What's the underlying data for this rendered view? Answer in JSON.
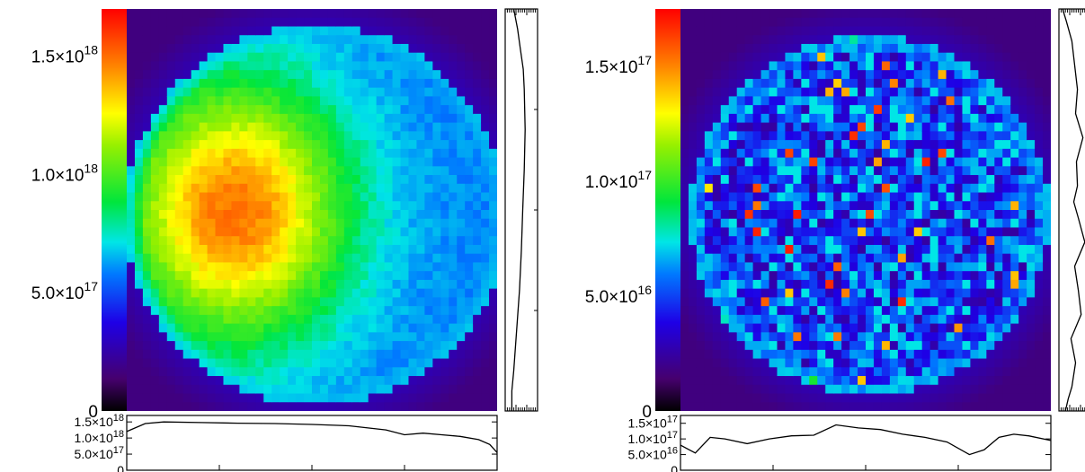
{
  "chart_data": [
    {
      "type": "heatmap",
      "colorbar": {
        "range": [
          0,
          1.7e+18
        ],
        "ticks": [
          {
            "value": 0,
            "label": "0"
          },
          {
            "value": 5e+17,
            "mant": "5.0×10",
            "exp": "17"
          },
          {
            "value": 1e+18,
            "mant": "1.0×10",
            "exp": "18"
          },
          {
            "value": 1.5e+18,
            "mant": "1.5×10",
            "exp": "18"
          }
        ]
      },
      "image": {
        "pattern": "smooth",
        "peak_value": 1.6e+18,
        "base_value": 9.5e+17
      },
      "horizontal_profile": {
        "range": [
          0,
          1.7e+18
        ],
        "ticks": [
          {
            "value": 0,
            "label": "0"
          },
          {
            "value": 5e+17,
            "mant": "5.0×10",
            "exp": "17"
          },
          {
            "value": 1e+18,
            "mant": "1.0×10",
            "exp": "18"
          },
          {
            "value": 1.5e+18,
            "mant": "1.5×10",
            "exp": "18"
          }
        ],
        "x": [
          0,
          0.05,
          0.1,
          0.2,
          0.3,
          0.4,
          0.5,
          0.6,
          0.7,
          0.75,
          0.8,
          0.85,
          0.9,
          0.95,
          0.98,
          1.0
        ],
        "values": [
          1.2e+18,
          1.45e+18,
          1.5e+18,
          1.48e+18,
          1.46e+18,
          1.45e+18,
          1.42e+18,
          1.38e+18,
          1.25e+18,
          1.1e+18,
          1.15e+18,
          1.1e+18,
          1.05e+18,
          9.5e+17,
          8e+17,
          5.5e+17
        ]
      },
      "vertical_profile": {
        "range": [
          0,
          1.7e+18
        ],
        "y": [
          0,
          0.05,
          0.1,
          0.2,
          0.3,
          0.4,
          0.5,
          0.6,
          0.7,
          0.8,
          0.85,
          0.9,
          0.95,
          1.0
        ],
        "values": [
          3.5e+17,
          3.5e+17,
          4.5e+17,
          6e+17,
          7.5e+17,
          8.5e+17,
          9.2e+17,
          1e+18,
          1.05e+18,
          1e+18,
          9.5e+17,
          8e+17,
          6.5e+17,
          4.5e+17
        ]
      }
    },
    {
      "type": "heatmap",
      "colorbar": {
        "range": [
          0,
          1.75e+17
        ],
        "ticks": [
          {
            "value": 0,
            "label": "0"
          },
          {
            "value": 5e+16,
            "mant": "5.0×10",
            "exp": "16"
          },
          {
            "value": 1e+17,
            "mant": "1.0×10",
            "exp": "17"
          },
          {
            "value": 1.5e+17,
            "mant": "1.5×10",
            "exp": "17"
          }
        ]
      },
      "image": {
        "pattern": "noisy",
        "peak_value": 1.7e+17,
        "base_value": 8.5e+16
      },
      "horizontal_profile": {
        "range": [
          0,
          1.75e+17
        ],
        "ticks": [
          {
            "value": 0,
            "label": "0"
          },
          {
            "value": 5e+16,
            "mant": "5.0×10",
            "exp": "16"
          },
          {
            "value": 1e+17,
            "mant": "1.0×10",
            "exp": "17"
          },
          {
            "value": 1.5e+17,
            "mant": "1.5×10",
            "exp": "17"
          }
        ],
        "x": [
          0,
          0.04,
          0.08,
          0.12,
          0.18,
          0.24,
          0.3,
          0.36,
          0.42,
          0.48,
          0.54,
          0.6,
          0.66,
          0.72,
          0.78,
          0.82,
          0.86,
          0.9,
          0.94,
          1.0
        ],
        "values": [
          8e+16,
          5.5e+16,
          1.05e+17,
          1e+17,
          8.5e+16,
          1e+17,
          1.1e+17,
          1.12e+17,
          1.45e+17,
          1.35e+17,
          1.3e+17,
          1.15e+17,
          1.05e+17,
          9e+16,
          5e+16,
          6.5e+16,
          1.05e+17,
          1.15e+17,
          1.1e+17,
          9.5e+16
        ]
      },
      "vertical_profile": {
        "range": [
          0,
          1.75e+17
        ],
        "y": [
          0,
          0.03,
          0.06,
          0.12,
          0.18,
          0.24,
          0.3,
          0.36,
          0.42,
          0.48,
          0.52,
          0.56,
          0.62,
          0.68,
          0.74,
          0.8,
          0.86,
          0.92,
          0.97,
          1.0
        ],
        "values": [
          3.5e+16,
          5e+16,
          7e+16,
          9e+16,
          6.5e+16,
          1.2e+17,
          1.05e+17,
          8.5e+16,
          1.4e+17,
          1.05e+17,
          8e+16,
          1e+17,
          9.5e+16,
          1.3e+17,
          9e+16,
          1e+17,
          8.5e+16,
          7e+16,
          4e+16,
          2e+16
        ]
      }
    }
  ]
}
